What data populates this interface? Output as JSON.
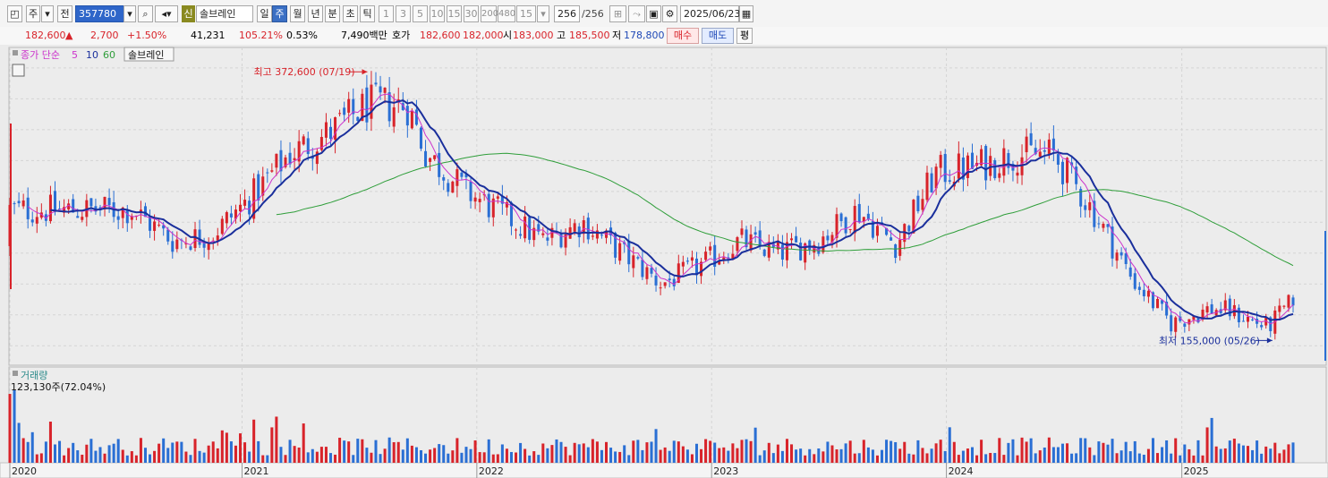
{
  "toolbar": {
    "period_main": "주",
    "prev_label": "전",
    "stock_code": "357780",
    "new_badge": "신",
    "stock_name": "솔브레인",
    "period_tabs": [
      {
        "label": "일",
        "selected": false
      },
      {
        "label": "주",
        "selected": true
      },
      {
        "label": "월",
        "selected": false
      },
      {
        "label": "년",
        "selected": false
      },
      {
        "label": "분",
        "selected": false
      },
      {
        "label": "초",
        "selected": false
      },
      {
        "label": "틱",
        "selected": false
      }
    ],
    "intervals": [
      "1",
      "3",
      "5",
      "10",
      "15",
      "30",
      "200",
      "480"
    ],
    "interval_value": "15",
    "count_value": "256",
    "count_total": "/256",
    "date": "2025/06/23"
  },
  "quote": {
    "price": "182,600",
    "change_arrow": "▲",
    "change": "2,700",
    "change_pct": "+1.50%",
    "volume": "41,231",
    "volume_ratio": "105.21%",
    "turnover": "0.53%",
    "amount": "7,490백만",
    "bid_ask_label": "호가",
    "ask": "182,600",
    "bid": "182,000",
    "open_label": "시",
    "open": "183,000",
    "high_label": "고",
    "high": "185,500",
    "low_label": "저",
    "low": "178,800",
    "buy_label": "매수",
    "sell_label": "매도",
    "avg_label": "평"
  },
  "colors": {
    "up": "#d8232a",
    "down": "#2a6fd4",
    "ma5": "#cc33cc",
    "ma10": "#1a2f9c",
    "ma60": "#2f9e3a"
  },
  "chart_data": [
    {
      "type": "candlestick",
      "legend": {
        "ma_label": "종가 단순",
        "ma_periods": [
          "5",
          "10",
          "60"
        ],
        "name": "솔브레인"
      },
      "x_labels": [
        "2020",
        "2021",
        "2022",
        "2023",
        "2024",
        "2025"
      ],
      "ylim": [
        140000,
        380000
      ],
      "grid": true,
      "annotations": [
        {
          "text": "최고 372,600 (07/19)",
          "date": "2021-07-19",
          "value": 372600
        },
        {
          "text": "최저 155,000 (05/26)",
          "date": "2025-05-26",
          "value": 155000
        }
      ],
      "close_anchors": [
        {
          "date": "2020-07",
          "close": 260000
        },
        {
          "date": "2020-09",
          "close": 235000
        },
        {
          "date": "2020-11",
          "close": 240000
        },
        {
          "date": "2021-01",
          "close": 270000
        },
        {
          "date": "2021-03",
          "close": 305000
        },
        {
          "date": "2021-05",
          "close": 322000
        },
        {
          "date": "2021-07",
          "close": 345000
        },
        {
          "date": "2021-09",
          "close": 345000
        },
        {
          "date": "2021-10",
          "close": 305000
        },
        {
          "date": "2021-12",
          "close": 275000
        },
        {
          "date": "2022-02",
          "close": 255000
        },
        {
          "date": "2022-04",
          "close": 235000
        },
        {
          "date": "2022-06",
          "close": 250000
        },
        {
          "date": "2022-08",
          "close": 225000
        },
        {
          "date": "2022-10",
          "close": 200000
        },
        {
          "date": "2022-12",
          "close": 215000
        },
        {
          "date": "2023-02",
          "close": 235000
        },
        {
          "date": "2023-04",
          "close": 225000
        },
        {
          "date": "2023-06",
          "close": 235000
        },
        {
          "date": "2023-08",
          "close": 260000
        },
        {
          "date": "2023-10",
          "close": 232000
        },
        {
          "date": "2023-12",
          "close": 290000
        },
        {
          "date": "2024-02",
          "close": 295000
        },
        {
          "date": "2024-04",
          "close": 305000
        },
        {
          "date": "2024-06",
          "close": 305000
        },
        {
          "date": "2024-08",
          "close": 260000
        },
        {
          "date": "2024-10",
          "close": 205000
        },
        {
          "date": "2024-12",
          "close": 168000
        },
        {
          "date": "2025-02",
          "close": 180000
        },
        {
          "date": "2025-03",
          "close": 178000
        },
        {
          "date": "2025-05",
          "close": 165000
        },
        {
          "date": "2025-06",
          "close": 182600
        }
      ]
    },
    {
      "type": "bar",
      "title": "거래량",
      "label": "123,130주(72.04%)"
    }
  ]
}
